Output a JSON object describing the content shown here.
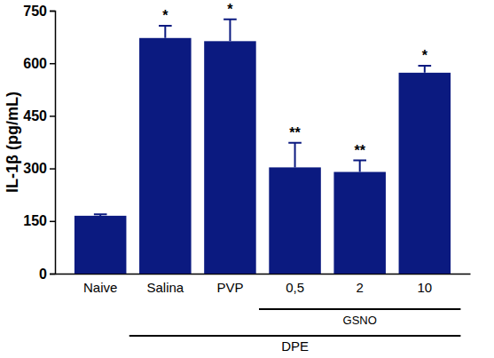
{
  "chart_data": {
    "type": "bar",
    "y_label": "IL-1β (pg/mL)",
    "categories": [
      "Naive",
      "Salina",
      "PVP",
      "0,5",
      "2",
      "10"
    ],
    "values": [
      165,
      672,
      663,
      303,
      290,
      573
    ],
    "error": [
      4,
      35,
      62,
      70,
      33,
      20
    ],
    "annotations": [
      null,
      "*",
      "*",
      "**",
      "**",
      "*"
    ],
    "groups": [
      {
        "label": "GSNO",
        "from": "0,5",
        "to": "10"
      },
      {
        "label": "DPE",
        "from": "Salina",
        "to": "10"
      }
    ],
    "color": "#0b1a80",
    "ylim": [
      0,
      750
    ],
    "yticks": [
      0,
      150,
      300,
      450,
      600,
      750
    ],
    "grid": false
  }
}
